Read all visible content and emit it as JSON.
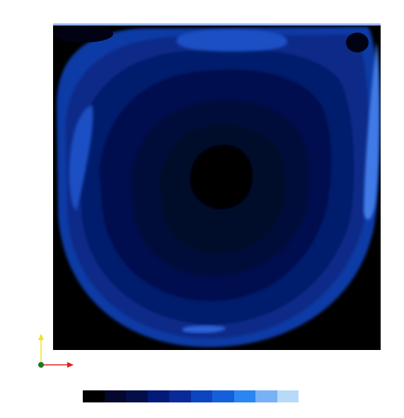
{
  "scene": {
    "background": "#ffffff",
    "domain_border": "#0a1a55",
    "lid_highlight": "#9ab6ff"
  },
  "contour_field": {
    "fill_levels": [
      "#02072a",
      "#020a3a",
      "#03104f",
      "#061b6c",
      "#0b2a88",
      "#0f3aa6",
      "#1a4fc4"
    ],
    "vortex_core": "#000000",
    "corner_region": "#000000",
    "wall_jet": [
      "#1a4fc4",
      "#2a64d8",
      "#3f7ae6"
    ]
  },
  "axes_triad": {
    "origin": "green-dot",
    "x_axis_color": "#e02020",
    "y_axis_color": "#f2e21a",
    "origin_color": "#1f7a1f"
  },
  "colorbar": {
    "label": "",
    "colors": [
      "#000000",
      "#05082c",
      "#040f4a",
      "#031a78",
      "#0a2a9a",
      "#0b45c0",
      "#1460dc",
      "#2a86f0",
      "#76b2f5",
      "#b8daf8"
    ]
  }
}
